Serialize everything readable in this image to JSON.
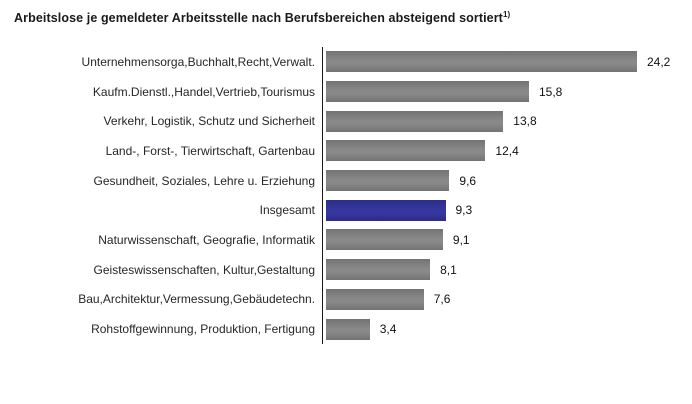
{
  "title": {
    "text": "Arbeitslose je gemeldeter Arbeitsstelle nach Berufsbereichen absteigend sortiert",
    "footnote_marker": "1)"
  },
  "colors": {
    "background": "#ffffff",
    "bar_default": "#7f7f7f",
    "bar_highlight": "#32329a",
    "axis_line": "#1a1a1a",
    "text": "#262626"
  },
  "chart_data": {
    "type": "bar",
    "orientation": "horizontal",
    "title": "Arbeitslose je gemeldeter Arbeitsstelle nach Berufsbereichen absteigend sortiert 1)",
    "categories": [
      "Unternehmensorga,Buchhalt,Recht,Verwalt.",
      "Kaufm.Dienstl.,Handel,Vertrieb,Tourismus",
      "Verkehr, Logistik, Schutz und Sicherheit",
      "Land-, Forst-, Tierwirtschaft, Gartenbau",
      "Gesundheit, Soziales, Lehre u. Erziehung",
      "Insgesamt",
      "Naturwissenschaft, Geografie, Informatik",
      "Geisteswissenschaften, Kultur,Gestaltung",
      "Bau,Architektur,Vermessung,Gebäudetechn.",
      "Rohstoffgewinnung, Produktion, Fertigung"
    ],
    "values": [
      24.2,
      15.8,
      13.8,
      12.4,
      9.6,
      9.3,
      9.1,
      8.1,
      7.6,
      3.4
    ],
    "value_labels": [
      "24,2",
      "15,8",
      "13,8",
      "12,4",
      "9,6",
      "9,3",
      "9,1",
      "8,1",
      "7,6",
      "3,4"
    ],
    "highlight_index": 5,
    "highlight_category": "Insgesamt",
    "xlim": [
      0,
      24.2
    ],
    "grid": false,
    "legend": false,
    "sorted": "descending",
    "value_labels_position": "end-of-bar"
  }
}
